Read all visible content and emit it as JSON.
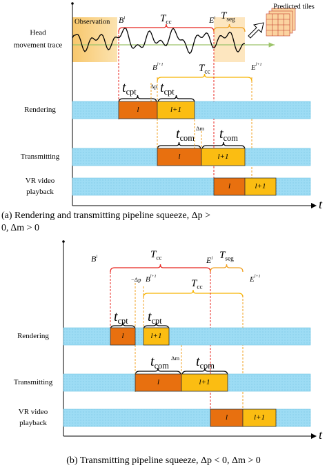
{
  "panel_a": {
    "head_label": [
      "Head",
      "movement trace"
    ],
    "observation": "Observation",
    "B_l": {
      "main": "B",
      "sup": "l"
    },
    "T_cc": {
      "main": "T",
      "sub": "cc"
    },
    "E_l": {
      "main": "E",
      "sup": "l"
    },
    "T_seg": {
      "main": "T",
      "sub": "seg"
    },
    "predicted_tiles": "Predicted tiles",
    "B_l1": {
      "main": "B",
      "sup": "l+1"
    },
    "T_cc2": {
      "main": "T",
      "sub": "cc"
    },
    "E_l1": {
      "main": "E",
      "sup": "l+1"
    },
    "delta_p": "Δp",
    "t_cpt": [
      {
        "main": "t",
        "sub": "cpt"
      },
      {
        "main": "t",
        "sub": "cpt"
      }
    ],
    "t_com": [
      {
        "main": "t",
        "sub": "com"
      },
      {
        "main": "t",
        "sub": "com"
      }
    ],
    "delta_m": "Δm",
    "rows": [
      {
        "label": [
          "Rendering"
        ],
        "blocks": [
          "l",
          "l+1"
        ]
      },
      {
        "label": [
          "Transmitting"
        ],
        "blocks": [
          "l",
          "l+1"
        ]
      },
      {
        "label": [
          "VR video",
          "playback"
        ],
        "blocks": [
          "l",
          "l+1"
        ]
      }
    ],
    "axis_label": "t",
    "caption": [
      "(a) Rendering and transmitting pipeline squeeze, Δp >",
      "0, Δm > 0"
    ]
  },
  "panel_b": {
    "B_l": {
      "main": "B",
      "sup": "l"
    },
    "T_cc": {
      "main": "T",
      "sub": "cc"
    },
    "E_l": {
      "main": "E",
      "sup": "l"
    },
    "T_seg": {
      "main": "T",
      "sub": "seg"
    },
    "neg_delta_p": "−Δp",
    "B_l1": {
      "main": "B",
      "sup": "l+1"
    },
    "T_cc2": {
      "main": "T",
      "sub": "cc"
    },
    "E_l1": {
      "main": "E",
      "sup": "l+1"
    },
    "t_cpt": [
      {
        "main": "t",
        "sub": "cpt"
      },
      {
        "main": "t",
        "sub": "cpt"
      }
    ],
    "t_com": [
      {
        "main": "t",
        "sub": "com"
      },
      {
        "main": "t",
        "sub": "com"
      }
    ],
    "delta_m": "Δm",
    "rows": [
      {
        "label": [
          "Rendering"
        ],
        "blocks": [
          "l",
          "l+1"
        ]
      },
      {
        "label": [
          "Transmitting"
        ],
        "blocks": [
          "l",
          "l+1"
        ]
      },
      {
        "label": [
          "VR video",
          "playback"
        ],
        "blocks": [
          "l",
          "l+1"
        ]
      }
    ],
    "axis_label": "t",
    "caption": [
      "(b) Transmitting pipeline squeeze, Δp < 0, Δm > 0"
    ]
  }
}
